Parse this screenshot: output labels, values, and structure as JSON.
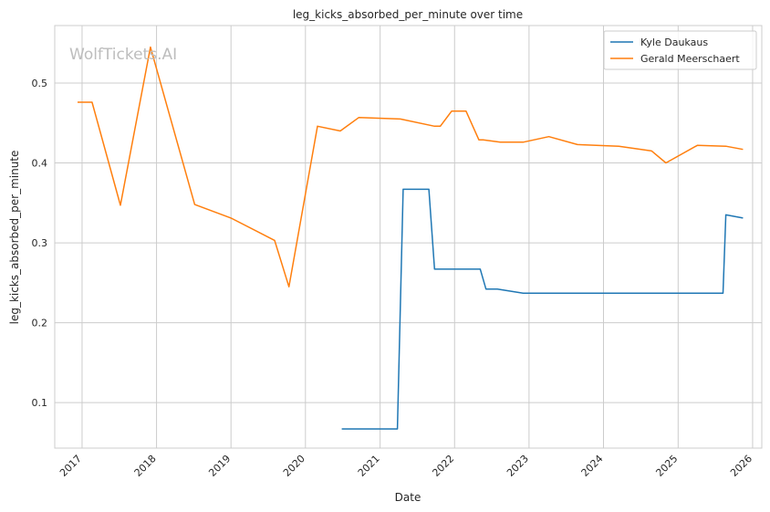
{
  "chart_data": {
    "type": "line",
    "title": "leg_kicks_absorbed_per_minute over time",
    "xlabel": "Date",
    "ylabel": "leg_kicks_absorbed_per_minute",
    "watermark": "WolfTickets.AI",
    "grid": true,
    "legend_position": "top-right",
    "xlim": [
      "2016-08-20",
      "2026-02-15"
    ],
    "ylim": [
      0.043,
      0.572
    ],
    "x_ticks": [
      "2017-01-01",
      "2018-01-01",
      "2019-01-01",
      "2020-01-01",
      "2021-01-01",
      "2022-01-01",
      "2023-01-01",
      "2024-01-01",
      "2025-01-01",
      "2026-01-01"
    ],
    "x_tick_labels": [
      "2017",
      "2018",
      "2019",
      "2020",
      "2021",
      "2022",
      "2023",
      "2024",
      "2025",
      "2026"
    ],
    "y_ticks": [
      0.1,
      0.2,
      0.3,
      0.4,
      0.5
    ],
    "y_tick_labels": [
      "0.1",
      "0.2",
      "0.3",
      "0.4",
      "0.5"
    ],
    "series": [
      {
        "name": "Kyle Daukaus",
        "color": "#1f77b4",
        "x": [
          "2020-06-27",
          "2021-03-27",
          "2021-04-24",
          "2021-08-28",
          "2021-09-25",
          "2022-05-07",
          "2022-06-04",
          "2022-07-30",
          "2022-12-03",
          "2025-08-09",
          "2025-08-23",
          "2025-11-15"
        ],
        "y": [
          0.067,
          0.067,
          0.367,
          0.367,
          0.267,
          0.267,
          0.242,
          0.242,
          0.237,
          0.237,
          0.335,
          0.331
        ]
      },
      {
        "name": "Gerald Meerschaert",
        "color": "#ff7f0e",
        "x": [
          "2016-12-10",
          "2017-02-19",
          "2017-07-08",
          "2017-12-02",
          "2018-07-07",
          "2019-01-01",
          "2019-08-03",
          "2019-10-12",
          "2020-02-29",
          "2020-06-20",
          "2020-09-19",
          "2021-04-10",
          "2021-09-25",
          "2021-10-23",
          "2021-12-18",
          "2022-02-26",
          "2022-04-30",
          "2022-05-21",
          "2022-08-13",
          "2022-12-03",
          "2023-04-08",
          "2023-08-26",
          "2024-03-16",
          "2024-08-24",
          "2024-11-02",
          "2025-04-05",
          "2025-08-23",
          "2025-11-15"
        ],
        "y": [
          0.476,
          0.476,
          0.347,
          0.545,
          0.348,
          0.331,
          0.303,
          0.245,
          0.446,
          0.44,
          0.457,
          0.455,
          0.446,
          0.446,
          0.465,
          0.465,
          0.429,
          0.429,
          0.426,
          0.426,
          0.433,
          0.423,
          0.421,
          0.415,
          0.4,
          0.422,
          0.421,
          0.417
        ]
      }
    ]
  }
}
